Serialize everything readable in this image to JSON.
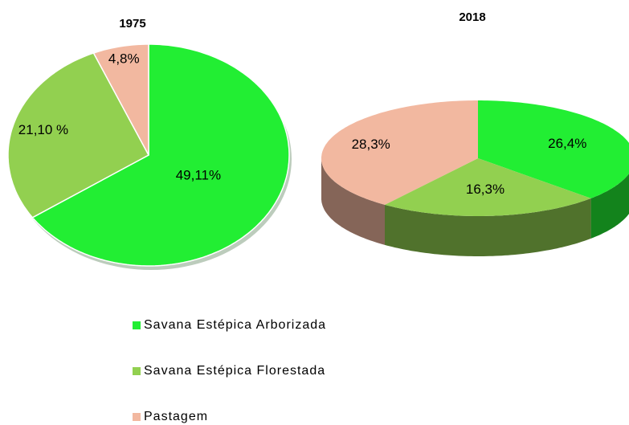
{
  "chart_data": [
    {
      "type": "pie",
      "title": "1975",
      "categories": [
        "Savana Estépica Arborizada",
        "Savana Estépica Florestada",
        "Pastagem"
      ],
      "values": [
        49.11,
        21.1,
        4.8
      ],
      "value_labels": [
        "49,11%",
        "21,10 %",
        "4,8%"
      ],
      "colors": [
        "#22ee33",
        "#92d050",
        "#f2b8a0"
      ]
    },
    {
      "type": "pie3d",
      "title": "2018",
      "categories": [
        "Savana Estépica Arborizada",
        "Savana Estépica Florestada",
        "Pastagem"
      ],
      "values": [
        26.4,
        16.3,
        28.3
      ],
      "value_labels": [
        "26,4%",
        "16,3%",
        "28,3%"
      ],
      "colors": [
        "#22ee33",
        "#92d050",
        "#f2b8a0"
      ]
    }
  ]
}
